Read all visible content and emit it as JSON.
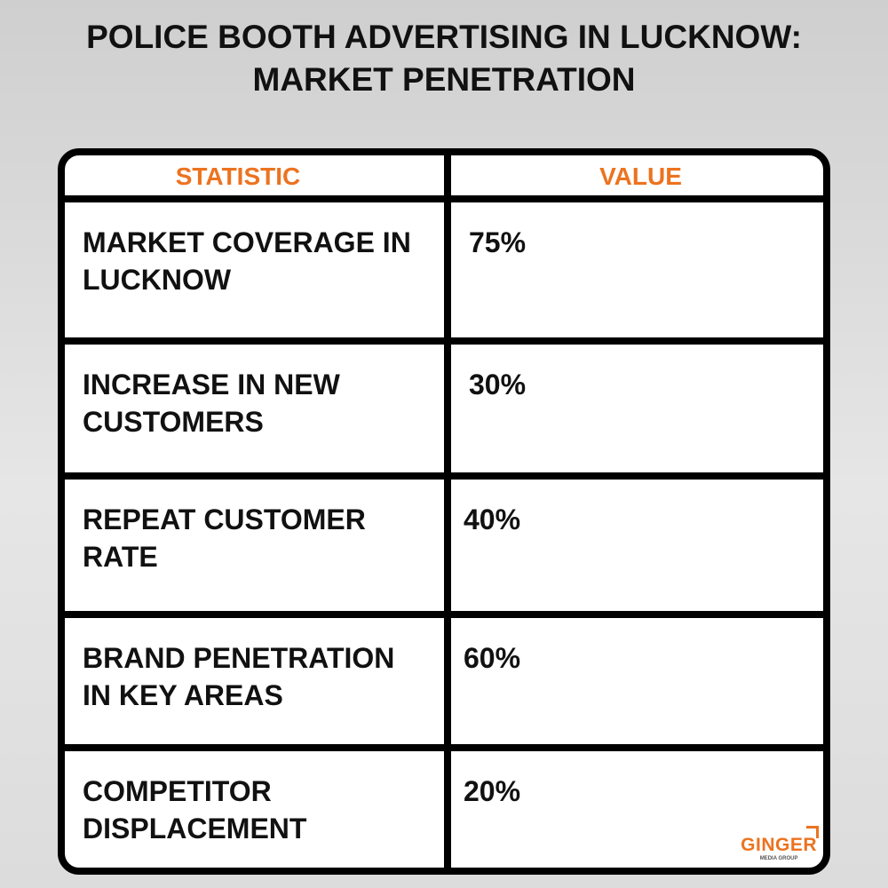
{
  "header": {
    "title": "POLICE BOOTH ADVERTISING IN LUCKNOW: MARKET PENETRATION"
  },
  "table": {
    "columns": [
      "STATISTIC",
      "VALUE"
    ],
    "rows": [
      [
        "MARKET COVERAGE IN LUCKNOW",
        "75%"
      ],
      [
        "INCREASE IN NEW CUSTOMERS",
        "30%"
      ],
      [
        "REPEAT CUSTOMER RATE",
        "40%"
      ],
      [
        "BRAND PENETRATION IN KEY AREAS",
        "60%"
      ],
      [
        "COMPETITOR DISPLACEMENT",
        "20%"
      ]
    ]
  },
  "logo": {
    "name": "GINGER",
    "tagline": "MEDIA GROUP"
  }
}
